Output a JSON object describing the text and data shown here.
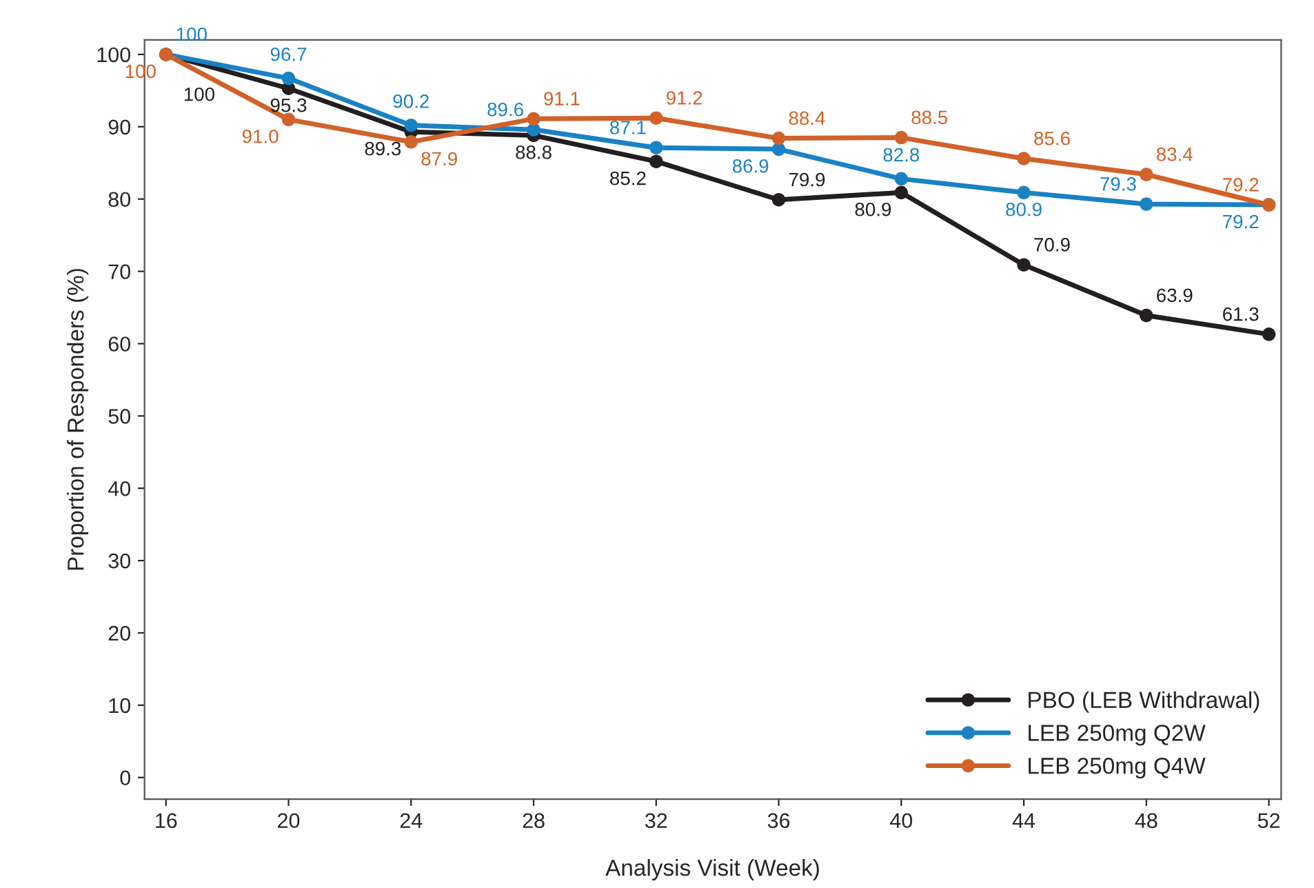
{
  "chart_data": {
    "type": "line",
    "xlabel": "Analysis Visit (Week)",
    "ylabel": "Proportion of Responders (%)",
    "x": [
      16,
      20,
      24,
      28,
      32,
      36,
      40,
      44,
      48,
      52
    ],
    "series": [
      {
        "name": "PBO (LEB Withdrawal)",
        "color": "#231f20",
        "values": [
          100,
          95.3,
          89.3,
          88.8,
          85.2,
          79.9,
          80.9,
          70.9,
          63.9,
          61.3
        ],
        "value_labels": [
          "100",
          "95.3",
          "89.3",
          "88.8",
          "85.2",
          "79.9",
          "80.9",
          "70.9",
          "63.9",
          "61.3"
        ]
      },
      {
        "name": "LEB 250mg Q2W",
        "color": "#1a82c4",
        "values": [
          100,
          96.7,
          90.2,
          89.6,
          87.1,
          86.9,
          82.8,
          80.9,
          79.3,
          79.2
        ],
        "value_labels": [
          "100",
          "96.7",
          "90.2",
          "89.6",
          "87.1",
          "86.9",
          "82.8",
          "80.9",
          "79.3",
          "79.2"
        ]
      },
      {
        "name": "LEB 250mg Q4W",
        "color": "#d0622a",
        "values": [
          100,
          91.0,
          87.9,
          91.1,
          91.2,
          88.4,
          88.5,
          85.6,
          83.4,
          79.2
        ],
        "value_labels": [
          "100",
          "91.0",
          "87.9",
          "91.1",
          "91.2",
          "88.4",
          "88.5",
          "85.6",
          "83.4",
          "79.2"
        ]
      }
    ],
    "xlim": [
      15.3,
      52.4
    ],
    "xticks": [
      16,
      20,
      24,
      28,
      32,
      36,
      40,
      44,
      48,
      52
    ],
    "ylim": [
      -3,
      102
    ],
    "yticks": [
      0,
      10,
      20,
      30,
      40,
      50,
      60,
      70,
      80,
      90,
      100
    ],
    "grid": false,
    "legend": "bottom right",
    "marker": "circle",
    "line_style": "solid"
  }
}
